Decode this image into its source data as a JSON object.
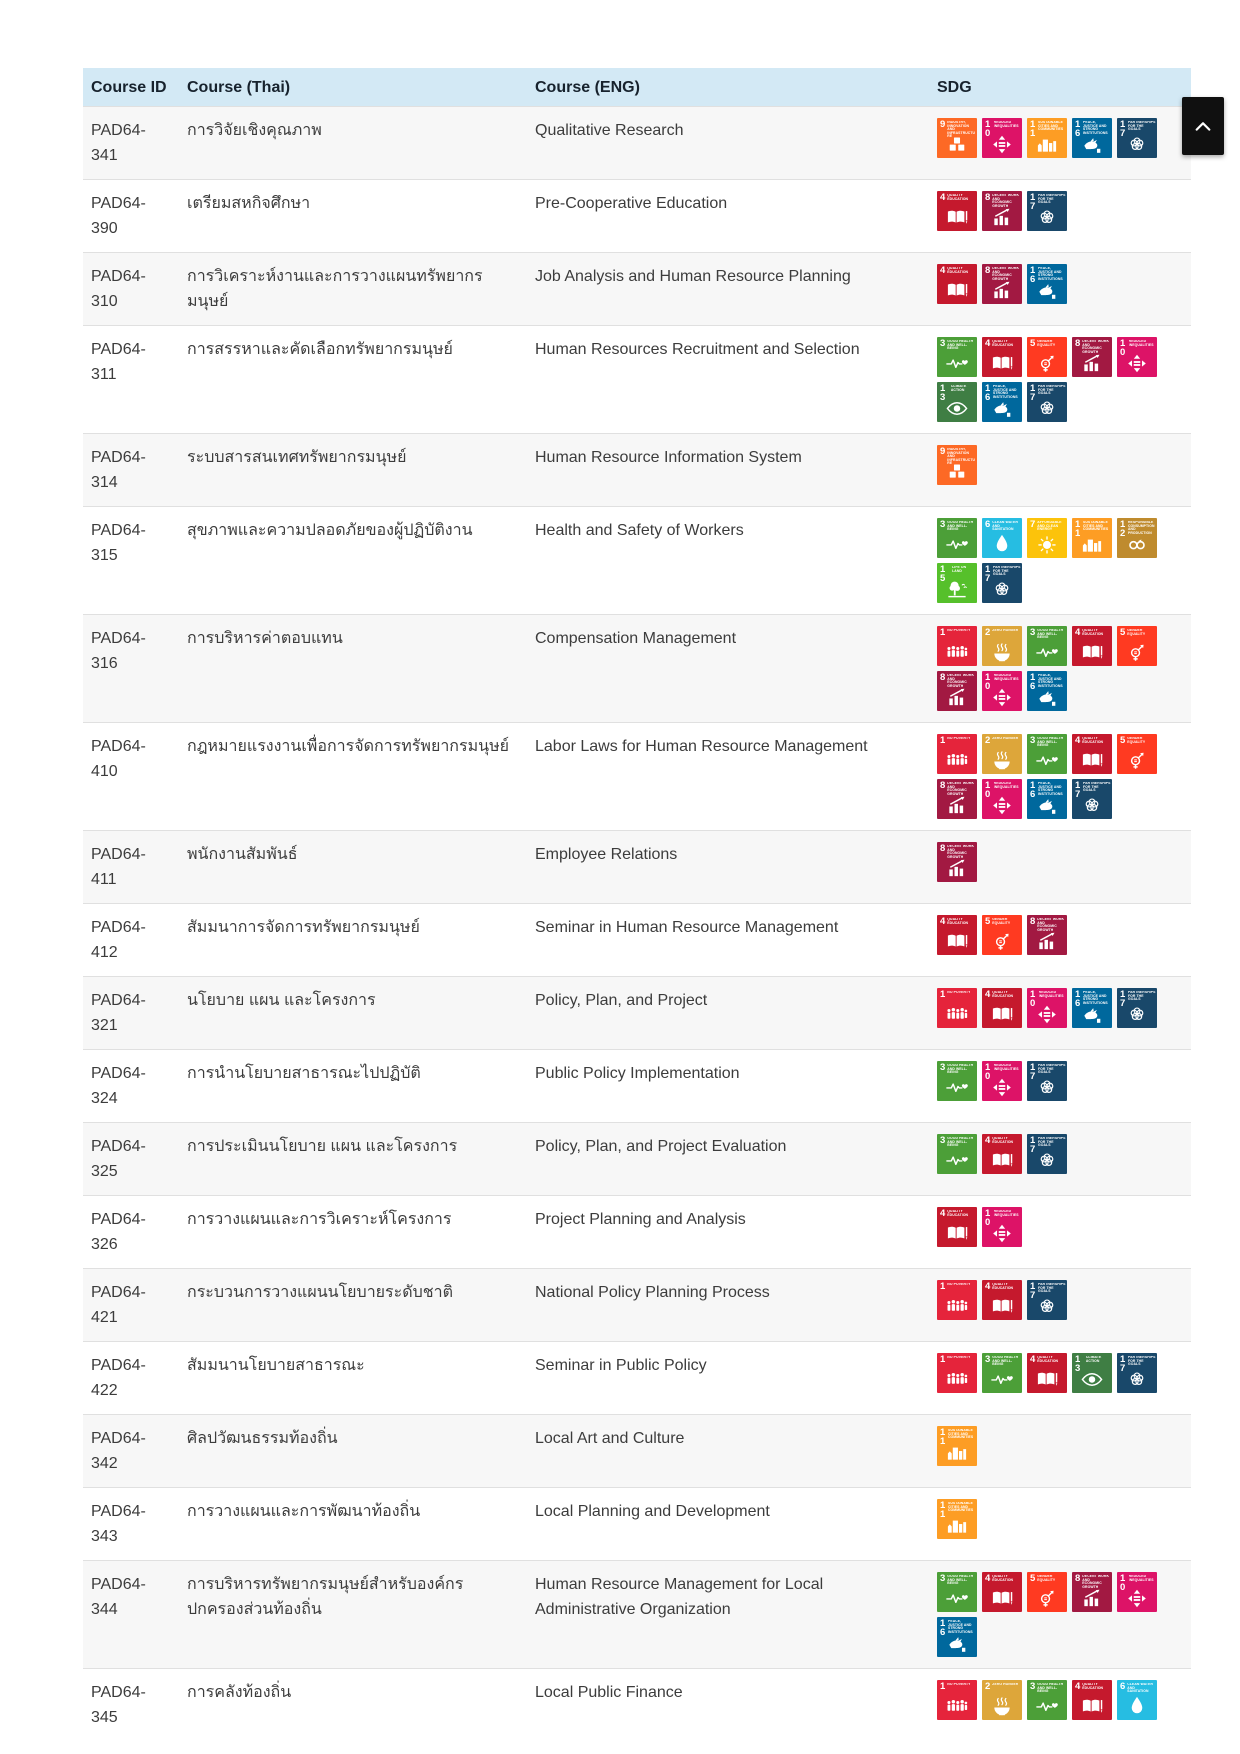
{
  "table": {
    "columns": [
      {
        "key": "id",
        "label": "Course ID"
      },
      {
        "key": "thai",
        "label": "Course (Thai)"
      },
      {
        "key": "eng",
        "label": "Course (ENG)"
      },
      {
        "key": "sdg",
        "label": "SDG"
      }
    ],
    "rows": [
      {
        "id": "PAD64-341",
        "thai": "การวิจัยเชิงคุณภาพ",
        "eng": "Qualitative Research",
        "sdgs": [
          9,
          10,
          11,
          16,
          17
        ]
      },
      {
        "id": "PAD64-390",
        "thai": "เตรียมสหกิจศึกษา",
        "eng": "Pre-Cooperative Education",
        "sdgs": [
          4,
          8,
          17
        ]
      },
      {
        "id": "PAD64-310",
        "thai": "การวิเคราะห์งานและการวางแผนทรัพยากรมนุษย์",
        "eng": "Job Analysis and Human Resource Planning",
        "sdgs": [
          4,
          8,
          16
        ]
      },
      {
        "id": "PAD64-311",
        "thai": "การสรรหาและคัดเลือกทรัพยากรมนุษย์",
        "eng": "Human Resources Recruitment and Selection",
        "sdgs": [
          3,
          4,
          5,
          8,
          10,
          13,
          16,
          17
        ]
      },
      {
        "id": "PAD64-314",
        "thai": "ระบบสารสนเทศทรัพยากรมนุษย์",
        "eng": "Human Resource Information System",
        "sdgs": [
          9
        ]
      },
      {
        "id": "PAD64-315",
        "thai": "สุขภาพและความปลอดภัยของผู้ปฏิบัติงาน",
        "eng": "Health and Safety of Workers",
        "sdgs": [
          3,
          6,
          7,
          11,
          12,
          15,
          17
        ]
      },
      {
        "id": "PAD64-316",
        "thai": "การบริหารค่าตอบแทน",
        "eng": "Compensation Management",
        "sdgs": [
          1,
          2,
          3,
          4,
          5,
          8,
          10,
          16
        ]
      },
      {
        "id": "PAD64-410",
        "thai": "กฎหมายแรงงานเพื่อการจัดการทรัพยากรมนุษย์",
        "eng": "Labor Laws for Human Resource Management",
        "sdgs": [
          1,
          2,
          3,
          4,
          5,
          8,
          10,
          16,
          17
        ]
      },
      {
        "id": "PAD64-411",
        "thai": "พนักงานสัมพันธ์",
        "eng": "Employee Relations",
        "sdgs": [
          8
        ]
      },
      {
        "id": "PAD64-412",
        "thai": "สัมมนาการจัดการทรัพยากรมนุษย์",
        "eng": "Seminar in Human Resource Management",
        "sdgs": [
          4,
          5,
          8
        ]
      },
      {
        "id": "PAD64-321",
        "thai": "นโยบาย แผน และโครงการ",
        "eng": "Policy, Plan, and Project",
        "sdgs": [
          1,
          4,
          10,
          16,
          17
        ]
      },
      {
        "id": "PAD64-324",
        "thai": "การนำนโยบายสาธารณะไปปฏิบัติ",
        "eng": "Public Policy Implementation",
        "sdgs": [
          3,
          10,
          17
        ]
      },
      {
        "id": "PAD64-325",
        "thai": "การประเมินนโยบาย แผน และโครงการ",
        "eng": "Policy, Plan, and Project Evaluation",
        "sdgs": [
          3,
          4,
          17
        ]
      },
      {
        "id": "PAD64-326",
        "thai": "การวางแผนและการวิเคราะห์โครงการ",
        "eng": "Project Planning and Analysis",
        "sdgs": [
          4,
          10
        ]
      },
      {
        "id": "PAD64-421",
        "thai": "กระบวนการวางแผนนโยบายระดับชาติ",
        "eng": "National Policy Planning Process",
        "sdgs": [
          1,
          4,
          17
        ]
      },
      {
        "id": "PAD64-422",
        "thai": "สัมมนานโยบายสาธารณะ",
        "eng": "Seminar in Public Policy",
        "sdgs": [
          1,
          3,
          4,
          13,
          17
        ]
      },
      {
        "id": "PAD64-342",
        "thai": "ศิลปวัฒนธรรมท้องถิ่น",
        "eng": "Local Art and Culture",
        "sdgs": [
          11
        ]
      },
      {
        "id": "PAD64-343",
        "thai": "การวางแผนและการพัฒนาท้องถิ่น",
        "eng": "Local Planning and Development",
        "sdgs": [
          11
        ]
      },
      {
        "id": "PAD64-344",
        "thai": "การบริหารทรัพยากรมนุษย์สำหรับองค์กรปกครองส่วนท้องถิ่น",
        "eng": "Human Resource Management for Local Administrative Organization",
        "sdgs": [
          3,
          4,
          5,
          8,
          10,
          16
        ]
      },
      {
        "id": "PAD64-345",
        "thai": "การคลังท้องถิ่น",
        "eng": "Local Public Finance",
        "sdgs": [
          1,
          2,
          3,
          4,
          6
        ]
      }
    ]
  },
  "sdg_goals": {
    "1": {
      "label": "NO POVERTY",
      "color": "#E5243B"
    },
    "2": {
      "label": "ZERO HUNGER",
      "color": "#DDA63A"
    },
    "3": {
      "label": "GOOD HEALTH AND WELL-BEING",
      "color": "#4C9F38"
    },
    "4": {
      "label": "QUALITY EDUCATION",
      "color": "#C5192D"
    },
    "5": {
      "label": "GENDER EQUALITY",
      "color": "#FF3A21"
    },
    "6": {
      "label": "CLEAN WATER AND SANITATION",
      "color": "#26BDE2"
    },
    "7": {
      "label": "AFFORDABLE AND CLEAN ENERGY",
      "color": "#FCC30B"
    },
    "8": {
      "label": "DECENT WORK AND ECONOMIC GROWTH",
      "color": "#A21942"
    },
    "9": {
      "label": "INDUSTRY, INNOVATION AND INFRASTRUCTURE",
      "color": "#FD6925"
    },
    "10": {
      "label": "REDUCED INEQUALITIES",
      "color": "#DD1367"
    },
    "11": {
      "label": "SUSTAINABLE CITIES AND COMMUNITIES",
      "color": "#FD9D24"
    },
    "12": {
      "label": "RESPONSIBLE CONSUMPTION AND PRODUCTION",
      "color": "#BF8B2E"
    },
    "13": {
      "label": "CLIMATE ACTION",
      "color": "#3F7E44"
    },
    "15": {
      "label": "LIFE ON LAND",
      "color": "#56C02B"
    },
    "16": {
      "label": "PEACE, JUSTICE AND STRONG INSTITUTIONS",
      "color": "#00689D"
    },
    "17": {
      "label": "PARTNERSHIPS FOR THE GOALS",
      "color": "#19486A"
    }
  },
  "colors": {
    "header_bg": "#D3E9F5",
    "row_alt_bg": "#F7F7F7",
    "row_border": "#E0E0E0",
    "text": "#3C3C3C",
    "scroll_button_bg": "#101010"
  },
  "scroll_top": {
    "icon": "chevron-up"
  }
}
